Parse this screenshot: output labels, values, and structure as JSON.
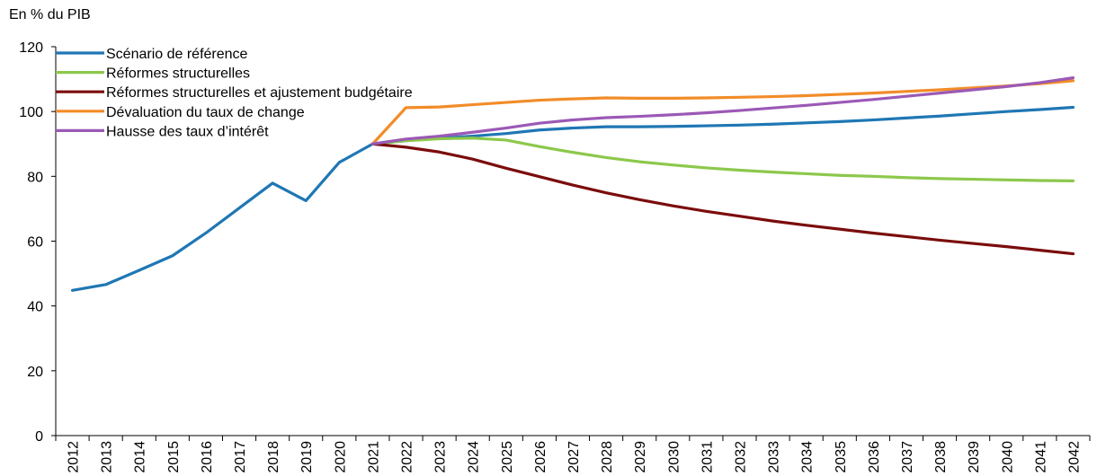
{
  "chart_data": {
    "type": "line",
    "unit_label": "En % du PIB",
    "x": [
      2012,
      2013,
      2014,
      2015,
      2016,
      2017,
      2018,
      2019,
      2020,
      2021,
      2022,
      2023,
      2024,
      2025,
      2026,
      2027,
      2028,
      2029,
      2030,
      2031,
      2032,
      2033,
      2034,
      2035,
      2036,
      2037,
      2038,
      2039,
      2040,
      2041,
      2042
    ],
    "y_ticks": [
      0,
      20,
      40,
      60,
      80,
      100,
      120
    ],
    "ylim": [
      0,
      120
    ],
    "grid": false,
    "legend_position": "top-left",
    "series": [
      {
        "name": "Scénario de référence",
        "color": "#1f77b4",
        "values": [
          44.8,
          46.6,
          51,
          55.5,
          62.5,
          70.2,
          77.9,
          72.5,
          84.3,
          90,
          91,
          91.8,
          92.4,
          93.2,
          94.3,
          94.9,
          95.3,
          95.3,
          95.4,
          95.6,
          95.8,
          96.1,
          96.5,
          96.9,
          97.4,
          98,
          98.6,
          99.3,
          100,
          100.6,
          101.3
        ]
      },
      {
        "name": "Réformes structurelles",
        "color": "#8cc84b",
        "values": [
          null,
          null,
          null,
          null,
          null,
          null,
          null,
          null,
          null,
          90,
          91,
          91.6,
          91.8,
          91.2,
          89.2,
          87.4,
          85.8,
          84.5,
          83.5,
          82.6,
          81.9,
          81.3,
          80.8,
          80.3,
          80,
          79.6,
          79.3,
          79.1,
          78.9,
          78.7,
          78.6
        ]
      },
      {
        "name": "Réformes structurelles et ajustement budgétaire",
        "color": "#7b0c0c",
        "values": [
          null,
          null,
          null,
          null,
          null,
          null,
          null,
          null,
          null,
          90,
          89,
          87.5,
          85.3,
          82.5,
          79.9,
          77.3,
          74.9,
          72.8,
          70.9,
          69.2,
          67.7,
          66.2,
          64.9,
          63.7,
          62.5,
          61.4,
          60.3,
          59.3,
          58.3,
          57.2,
          56.1
        ]
      },
      {
        "name": "Dévaluation du taux de change",
        "color": "#f28c28",
        "values": [
          null,
          null,
          null,
          null,
          null,
          null,
          null,
          null,
          null,
          90,
          101.2,
          101.4,
          102.1,
          102.8,
          103.5,
          103.9,
          104.2,
          104.1,
          104.1,
          104.2,
          104.4,
          104.6,
          104.9,
          105.3,
          105.7,
          106.2,
          106.7,
          107.3,
          107.9,
          108.6,
          109.5
        ]
      },
      {
        "name": "Hausse des taux d’intérêt",
        "color": "#9b59b6",
        "values": [
          null,
          null,
          null,
          null,
          null,
          null,
          null,
          null,
          null,
          90,
          91.5,
          92.4,
          93.6,
          94.9,
          96.4,
          97.4,
          98.1,
          98.5,
          99,
          99.6,
          100.3,
          101.1,
          101.9,
          102.8,
          103.7,
          104.7,
          105.7,
          106.7,
          107.7,
          108.9,
          110.4
        ]
      }
    ]
  }
}
